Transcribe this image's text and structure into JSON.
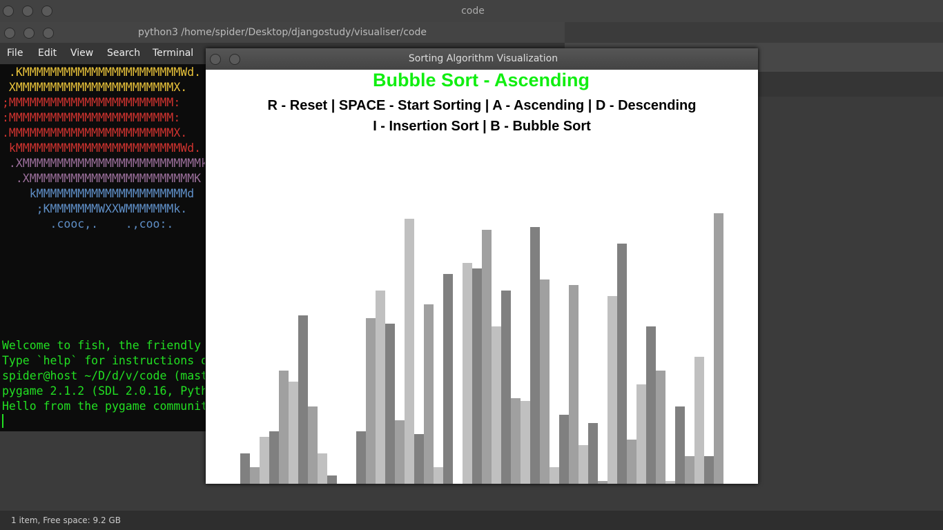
{
  "desktop": {
    "title": "code",
    "status": "1 item, Free space: 9.2 GB"
  },
  "terminal": {
    "title": "python3 /home/spider/Desktop/djangostudy/visualiser/code",
    "menu": [
      "File",
      "Edit",
      "View",
      "Search",
      "Terminal"
    ],
    "art": [
      {
        "text": " .KMMMMMMMMMMMMMMMMMMMMMMMWd.",
        "color": "#e8c23a"
      },
      {
        "text": " XMMMMMMMMMMMMMMMMMMMMMMMX.",
        "color": "#e8c23a"
      },
      {
        "text": ";MMMMMMMMMMMMMMMMMMMMMMMM:",
        "color": "#d0332f"
      },
      {
        "text": ":MMMMMMMMMMMMMMMMMMMMMMMM:",
        "color": "#d0332f"
      },
      {
        "text": ".MMMMMMMMMMMMMMMMMMMMMMMMX.",
        "color": "#d0332f"
      },
      {
        "text": " kMMMMMMMMMMMMMMMMMMMMMMMMWd.",
        "color": "#d0332f"
      },
      {
        "text": " .XMMMMMMMMMMMMMMMMMMMMMMMMMMk",
        "color": "#9b6f9b"
      },
      {
        "text": "  .XMMMMMMMMMMMMMMMMMMMMMMMMK",
        "color": "#9b6f9b"
      },
      {
        "text": "    kMMMMMMMMMMMMMMMMMMMMMMd",
        "color": "#5f8fc7"
      },
      {
        "text": "     ;KMMMMMMMWXXWMMMMMMMk.",
        "color": "#5f8fc7"
      },
      {
        "text": "       .cooc,.    .,coo:.",
        "color": "#5f8fc7"
      }
    ],
    "output": [
      "Welcome to fish, the friendly",
      "Type `help` for instructions o",
      "spider@host ~/D/d/v/code (mast",
      "pygame 2.1.2 (SDL 2.0.16, Pyth",
      "Hello from the pygame communit"
    ]
  },
  "visualizer": {
    "title": "Sorting Algorithm Visualization",
    "heading": "Bubble Sort - Ascending",
    "instructions": [
      "R - Reset | SPACE - Start Sorting | A - Ascending | D - Descending",
      "I - Insertion Sort | B - Bubble Sort"
    ],
    "bar_colors": [
      "#808080",
      "#a0a0a0",
      "#c0c0c0"
    ],
    "bars": [
      44,
      24,
      68,
      76,
      164,
      148,
      244,
      112,
      44,
      12,
      0,
      0,
      76,
      240,
      280,
      232,
      92,
      384,
      72,
      260,
      24,
      304,
      0,
      320,
      312,
      368,
      228,
      280,
      124,
      120,
      372,
      296,
      24,
      100,
      288,
      56,
      88,
      4,
      272,
      348,
      64,
      144,
      228,
      164,
      4,
      112,
      40,
      184,
      40,
      392
    ]
  }
}
